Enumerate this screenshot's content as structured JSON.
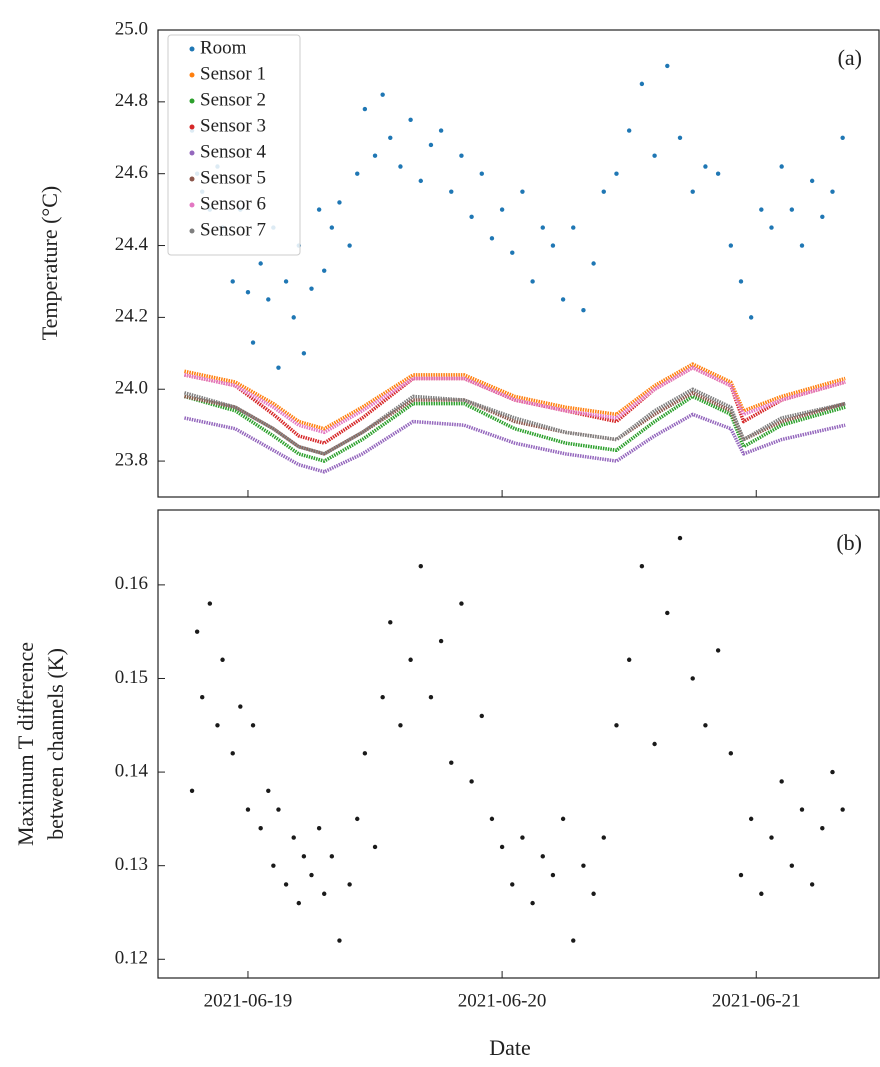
{
  "chart_data": [
    {
      "type": "scatter-line",
      "ylabel": "Temperature (°C)",
      "annotation": "(a)",
      "ylim": [
        23.7,
        25.0
      ],
      "yticks": [
        23.8,
        {
          "value": 24,
          "label": "24.0"
        },
        24.2,
        24.4,
        24.6,
        24.8,
        {
          "value": 25,
          "label": "25.0"
        }
      ],
      "xlim": [
        -0.354,
        2.483
      ],
      "xticks": [
        0,
        1,
        2
      ],
      "legend": "upper left",
      "x": [
        -0.25,
        -0.05,
        0.1,
        0.2,
        0.3,
        0.45,
        0.65,
        0.85,
        1.05,
        1.25,
        1.45,
        1.6,
        1.75,
        1.9,
        1.95,
        2.1,
        2.35
      ],
      "series": [
        {
          "name": "Room",
          "color": "#1f77b4",
          "kind": "scatter",
          "x": [
            -0.22,
            -0.2,
            -0.18,
            -0.15,
            -0.12,
            -0.1,
            -0.06,
            -0.03,
            0.0,
            0.02,
            0.05,
            0.08,
            0.1,
            0.12,
            0.15,
            0.18,
            0.2,
            0.22,
            0.25,
            0.28,
            0.3,
            0.33,
            0.36,
            0.4,
            0.43,
            0.46,
            0.5,
            0.53,
            0.56,
            0.6,
            0.64,
            0.68,
            0.72,
            0.76,
            0.8,
            0.84,
            0.88,
            0.92,
            0.96,
            1.0,
            1.04,
            1.08,
            1.12,
            1.16,
            1.2,
            1.24,
            1.28,
            1.32,
            1.36,
            1.4,
            1.45,
            1.5,
            1.55,
            1.6,
            1.65,
            1.7,
            1.75,
            1.8,
            1.85,
            1.9,
            1.94,
            1.98,
            2.02,
            2.06,
            2.1,
            2.14,
            2.18,
            2.22,
            2.26,
            2.3,
            2.34
          ],
          "values": [
            24.72,
            24.6,
            24.55,
            24.5,
            24.62,
            24.45,
            24.3,
            24.5,
            24.27,
            24.13,
            24.35,
            24.25,
            24.45,
            24.06,
            24.3,
            24.2,
            24.4,
            24.1,
            24.28,
            24.5,
            24.33,
            24.45,
            24.52,
            24.4,
            24.6,
            24.78,
            24.65,
            24.82,
            24.7,
            24.62,
            24.75,
            24.58,
            24.68,
            24.72,
            24.55,
            24.65,
            24.48,
            24.6,
            24.42,
            24.5,
            24.38,
            24.55,
            24.3,
            24.45,
            24.4,
            24.25,
            24.45,
            24.22,
            24.35,
            24.55,
            24.6,
            24.72,
            24.85,
            24.65,
            24.9,
            24.7,
            24.55,
            24.62,
            24.6,
            24.4,
            24.3,
            24.2,
            24.5,
            24.45,
            24.62,
            24.5,
            24.4,
            24.58,
            24.48,
            24.55,
            24.7
          ]
        },
        {
          "name": "Sensor 1",
          "color": "#ff7f0e",
          "values": [
            24.05,
            24.02,
            23.96,
            23.91,
            23.89,
            23.95,
            24.04,
            24.04,
            23.98,
            23.95,
            23.93,
            24.01,
            24.07,
            24.02,
            23.94,
            23.98,
            24.03
          ]
        },
        {
          "name": "Sensor 2",
          "color": "#2ca02c",
          "values": [
            23.98,
            23.94,
            23.87,
            23.82,
            23.8,
            23.86,
            23.96,
            23.96,
            23.89,
            23.85,
            23.83,
            23.91,
            23.98,
            23.93,
            23.84,
            23.9,
            23.95
          ]
        },
        {
          "name": "Sensor 3",
          "color": "#d62728",
          "values": [
            24.04,
            24.01,
            23.93,
            23.87,
            23.85,
            23.92,
            24.03,
            24.03,
            23.97,
            23.94,
            23.91,
            24.0,
            24.06,
            24.01,
            23.91,
            23.97,
            24.02
          ]
        },
        {
          "name": "Sensor 4",
          "color": "#9467bd",
          "values": [
            23.92,
            23.89,
            23.83,
            23.79,
            23.77,
            23.82,
            23.91,
            23.9,
            23.85,
            23.82,
            23.8,
            23.87,
            23.93,
            23.89,
            23.82,
            23.86,
            23.9
          ]
        },
        {
          "name": "Sensor 5",
          "color": "#8c564b",
          "values": [
            23.98,
            23.95,
            23.89,
            23.84,
            23.82,
            23.88,
            23.97,
            23.97,
            23.91,
            23.88,
            23.86,
            23.93,
            23.99,
            23.94,
            23.86,
            23.91,
            23.96
          ]
        },
        {
          "name": "Sensor 6",
          "color": "#e377c2",
          "values": [
            24.04,
            24.01,
            23.95,
            23.9,
            23.88,
            23.94,
            24.03,
            24.03,
            23.97,
            23.94,
            23.92,
            24.0,
            24.06,
            24.01,
            23.93,
            23.97,
            24.02
          ]
        },
        {
          "name": "Sensor 7",
          "color": "#7f7f7f",
          "values": [
            23.99,
            23.95,
            23.89,
            23.84,
            23.82,
            23.88,
            23.98,
            23.97,
            23.92,
            23.88,
            23.86,
            23.94,
            24.0,
            23.95,
            23.86,
            23.92,
            23.96
          ]
        }
      ]
    },
    {
      "type": "scatter-line",
      "ylabel": [
        "Maximum T difference",
        "between channels (K)"
      ],
      "annotation": "(b)",
      "xlabel": "Date",
      "ylim": [
        0.118,
        0.168
      ],
      "yticks": [
        0.12,
        0.13,
        0.14,
        0.15,
        0.16
      ],
      "xlim": [
        -0.354,
        2.483
      ],
      "xticks": [
        {
          "value": 0,
          "label": "2021-06-19"
        },
        {
          "value": 1,
          "label": "2021-06-20"
        },
        {
          "value": 2,
          "label": "2021-06-21"
        }
      ],
      "series": [
        {
          "color": "#1a1a1a",
          "kind": "scatter",
          "x": [
            -0.22,
            -0.2,
            -0.18,
            -0.15,
            -0.12,
            -0.1,
            -0.06,
            -0.03,
            0.0,
            0.02,
            0.05,
            0.08,
            0.1,
            0.12,
            0.15,
            0.18,
            0.2,
            0.22,
            0.25,
            0.28,
            0.3,
            0.33,
            0.36,
            0.4,
            0.43,
            0.46,
            0.5,
            0.53,
            0.56,
            0.6,
            0.64,
            0.68,
            0.72,
            0.76,
            0.8,
            0.84,
            0.88,
            0.92,
            0.96,
            1.0,
            1.04,
            1.08,
            1.12,
            1.16,
            1.2,
            1.24,
            1.28,
            1.32,
            1.36,
            1.4,
            1.45,
            1.5,
            1.55,
            1.6,
            1.65,
            1.7,
            1.75,
            1.8,
            1.85,
            1.9,
            1.94,
            1.98,
            2.02,
            2.06,
            2.1,
            2.14,
            2.18,
            2.22,
            2.26,
            2.3,
            2.34
          ],
          "values": [
            0.138,
            0.155,
            0.148,
            0.158,
            0.145,
            0.152,
            0.142,
            0.147,
            0.136,
            0.145,
            0.134,
            0.138,
            0.13,
            0.136,
            0.128,
            0.133,
            0.126,
            0.131,
            0.129,
            0.134,
            0.127,
            0.131,
            0.122,
            0.128,
            0.135,
            0.142,
            0.132,
            0.148,
            0.156,
            0.145,
            0.152,
            0.162,
            0.148,
            0.154,
            0.141,
            0.158,
            0.139,
            0.146,
            0.135,
            0.132,
            0.128,
            0.133,
            0.126,
            0.131,
            0.129,
            0.135,
            0.122,
            0.13,
            0.127,
            0.133,
            0.145,
            0.152,
            0.162,
            0.143,
            0.157,
            0.165,
            0.15,
            0.145,
            0.153,
            0.142,
            0.129,
            0.135,
            0.127,
            0.133,
            0.139,
            0.13,
            0.136,
            0.128,
            0.134,
            0.14,
            0.136
          ]
        }
      ]
    }
  ]
}
